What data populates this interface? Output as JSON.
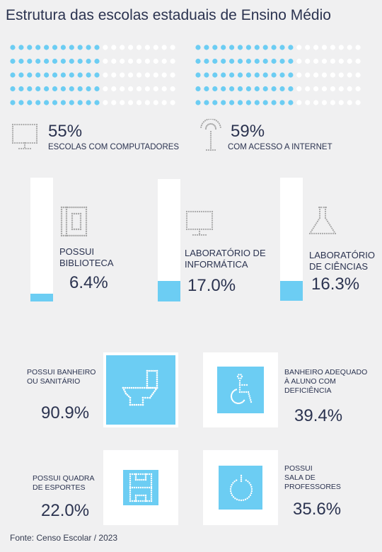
{
  "title": "Estrutura das escolas estaduais de Ensino Médio",
  "colors": {
    "accent": "#6ccdf3",
    "empty": "#ffffff",
    "text": "#2b3350",
    "icon": "#a8a8a8"
  },
  "top": {
    "computers": {
      "value": "55%",
      "label": "ESCOLAS COM COMPUTADORES",
      "icon": "monitor-icon"
    },
    "internet": {
      "value": "59%",
      "label": "COM ACESSO A INTERNET",
      "icon": "antenna-icon"
    }
  },
  "labs": {
    "library": {
      "label_line1": "POSSUI",
      "label_line2": "BIBLIOTECA",
      "value": "6.4%",
      "icon": "book-icon"
    },
    "informatics": {
      "label_line1": "LABORATÓRIO DE",
      "label_line2": "INFORMÁTICA",
      "value": "17.0%",
      "icon": "monitor-icon"
    },
    "science": {
      "label_line1": "LABORATÓRIO",
      "label_line2": "DE CIÊNCIAS",
      "value": "16.3%",
      "icon": "flask-icon"
    }
  },
  "tiles": {
    "bathroom": {
      "label_line1": "POSSUI BANHEIRO",
      "label_line2": "OU SANITÁRIO",
      "value": "90.9%",
      "icon": "toilet-icon"
    },
    "accessible": {
      "label_line1": "BANHEIRO ADEQUADO",
      "label_line2": "À ALUNO COM",
      "label_line3": "DEFICIÊNCIA",
      "value": "39.4%",
      "icon": "wheelchair-icon"
    },
    "court": {
      "label_line1": "POSSUI QUADRA",
      "label_line2": "DE ESPORTES",
      "value": "22.0%",
      "icon": "sports-court-icon"
    },
    "teachers": {
      "label_line1": "POSSUI",
      "label_line2": "SALA DE",
      "label_line3": "PROFESSORES",
      "value": "35.6%",
      "icon": "coffee-cup-icon"
    }
  },
  "source": "Fonte: Censo Escolar / 2023",
  "chart_data": [
    {
      "type": "waffle",
      "series": [
        {
          "name": "ESCOLAS COM COMPUTADORES",
          "values": [
            55
          ]
        }
      ]
    },
    {
      "type": "waffle",
      "series": [
        {
          "name": "COM ACESSO A INTERNET",
          "values": [
            59
          ]
        }
      ]
    },
    {
      "type": "bar",
      "categories": [
        "POSSUI BIBLIOTECA",
        "LABORATÓRIO DE INFORMÁTICA",
        "LABORATÓRIO DE CIÊNCIAS"
      ],
      "values": [
        6.4,
        17.0,
        16.3
      ],
      "ylim": [
        0,
        100
      ]
    },
    {
      "type": "table",
      "categories": [
        "POSSUI BANHEIRO OU SANITÁRIO",
        "BANHEIRO ADEQUADO À ALUNO COM DEFICIÊNCIA",
        "POSSUI QUADRA DE ESPORTES",
        "POSSUI SALA DE PROFESSORES"
      ],
      "values": [
        90.9,
        39.4,
        22.0,
        35.6
      ]
    }
  ]
}
